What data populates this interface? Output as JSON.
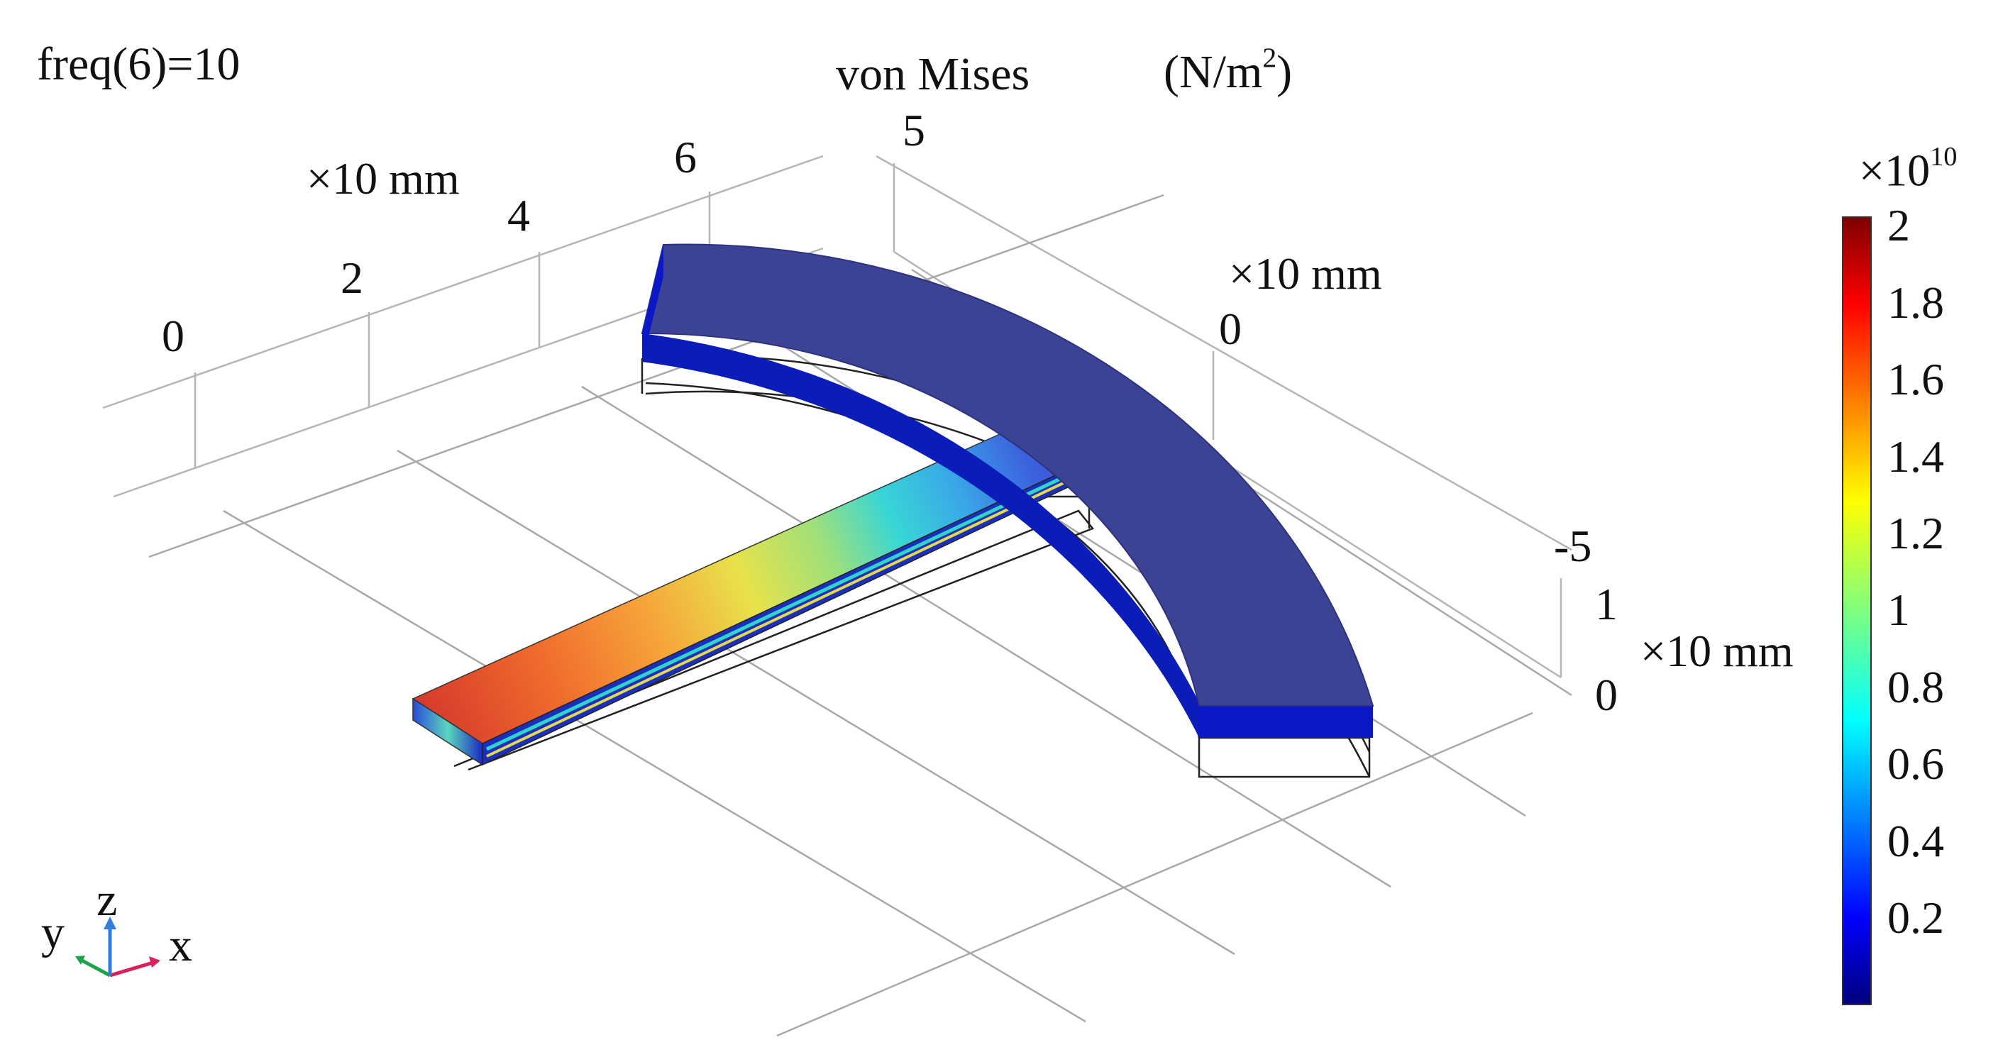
{
  "plot_label": "freq(6)=10",
  "quantity_label": "von Mises",
  "unit_label": "(N/m",
  "unit_sup": "2",
  "unit_close": ")",
  "axis_unit_label": "×10  mm",
  "x_axis_ticks": [
    "0",
    "2",
    "4",
    "6"
  ],
  "y_axis_ticks": [
    "5",
    "0",
    "-5"
  ],
  "z_axis_ticks": [
    "1",
    "0"
  ],
  "colorbar": {
    "multiplier_base": "×10",
    "multiplier_exp": "10",
    "ticks": [
      "2",
      "1.8",
      "1.6",
      "1.4",
      "1.2",
      "1",
      "0.8",
      "0.6",
      "0.4",
      "0.2"
    ],
    "range": [
      0,
      2
    ],
    "colormap": "jet"
  },
  "triad": {
    "x": "x",
    "y": "y",
    "z": "z"
  },
  "colors": {
    "ring": "#3c4294",
    "ring_edge": "#0b18c8",
    "triad_x": "#d62257",
    "triad_y": "#1ea24a",
    "triad_z": "#2f7ed8"
  }
}
